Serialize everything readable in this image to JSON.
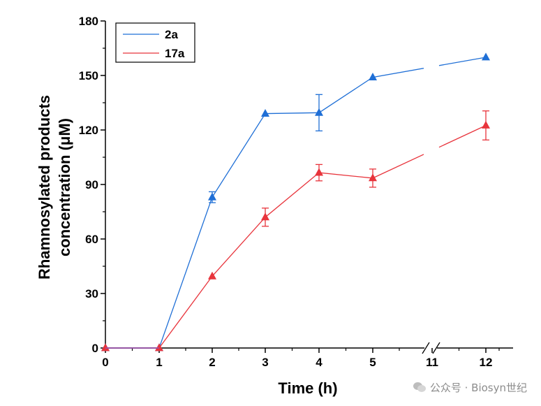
{
  "chart_data": {
    "type": "line",
    "xlabel": "Time (h)",
    "ylabel_lines": [
      "Rhamnosylated products",
      "concentration (μM)"
    ],
    "ylim": [
      0,
      180
    ],
    "yticks": [
      "0",
      "30",
      "60",
      "90",
      "120",
      "150",
      "180"
    ],
    "xticks": [
      "0",
      "1",
      "2",
      "3",
      "4",
      "5",
      "11",
      "12"
    ],
    "axis_break": "between 5 and 11",
    "legend_position": "top-left",
    "series": [
      {
        "name": "2a",
        "color": "#1f6fd6",
        "marker": "triangle",
        "points": [
          {
            "x": "0",
            "y": 0,
            "err": 0
          },
          {
            "x": "1",
            "y": 0,
            "err": 0
          },
          {
            "x": "2",
            "y": 83,
            "err": 3
          },
          {
            "x": "3",
            "y": 129,
            "err": 0
          },
          {
            "x": "4",
            "y": 129.5,
            "err": 10
          },
          {
            "x": "5",
            "y": 149,
            "err": 0
          },
          {
            "x": "12",
            "y": 160,
            "err": 0
          }
        ]
      },
      {
        "name": "17a",
        "color": "#e8343c",
        "marker": "triangle",
        "points": [
          {
            "x": "0",
            "y": 0,
            "err": 0
          },
          {
            "x": "1",
            "y": 0,
            "err": 0
          },
          {
            "x": "2",
            "y": 39.5,
            "err": 0
          },
          {
            "x": "3",
            "y": 72,
            "err": 5
          },
          {
            "x": "4",
            "y": 96.5,
            "err": 4.5
          },
          {
            "x": "5",
            "y": 93.5,
            "err": 5
          },
          {
            "x": "12",
            "y": 122.5,
            "err": 8
          }
        ]
      }
    ]
  },
  "watermark": {
    "text": "公众号 · Biosyn世纪"
  }
}
